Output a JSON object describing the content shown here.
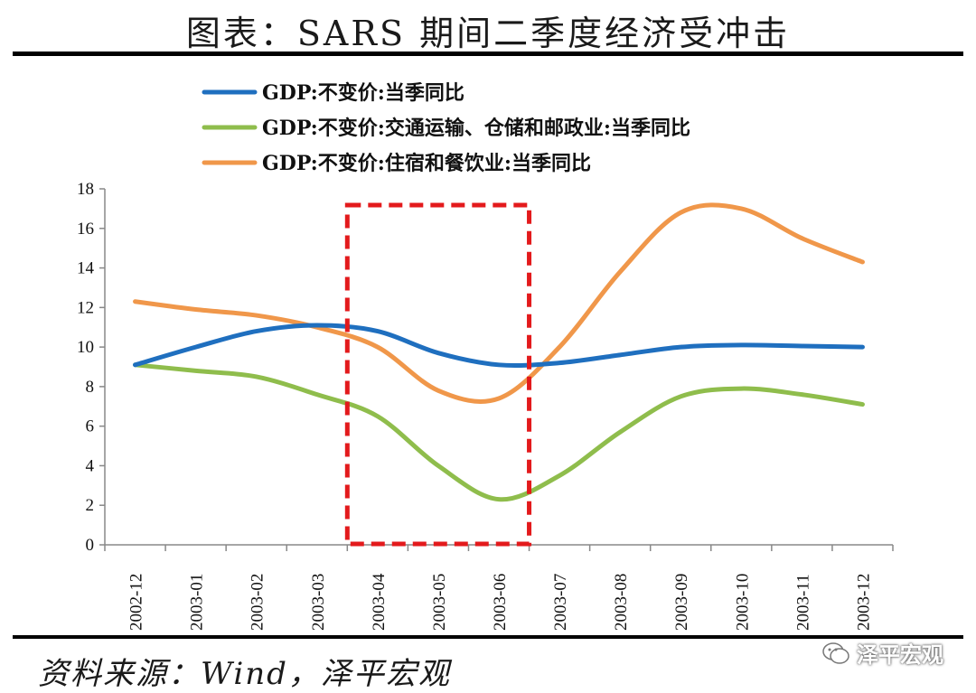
{
  "title": "图表：SARS 期间二季度经济受冲击",
  "source": "资料来源：Wind，泽平宏观",
  "watermark": "泽平宏观",
  "chart_data": {
    "type": "line",
    "categories": [
      "2002-12",
      "2003-01",
      "2003-02",
      "2003-03",
      "2003-04",
      "2003-05",
      "2003-06",
      "2003-07",
      "2003-08",
      "2003-09",
      "2003-10",
      "2003-11",
      "2003-12"
    ],
    "ylim": [
      0,
      18
    ],
    "yticks": [
      0,
      2,
      4,
      6,
      8,
      10,
      12,
      14,
      16,
      18
    ],
    "series": [
      {
        "name": "GDP:不变价:当季同比",
        "color": "#1f6fbf",
        "values": [
          9.1,
          10.0,
          10.8,
          11.1,
          10.8,
          9.7,
          9.1,
          9.2,
          9.6,
          10.0,
          10.1,
          10.05,
          10.0
        ]
      },
      {
        "name": "GDP:不变价:交通运输、仓储和邮政业:当季同比",
        "color": "#8fbd4c",
        "values": [
          9.1,
          8.8,
          8.5,
          7.6,
          6.5,
          4.0,
          2.3,
          3.5,
          5.7,
          7.5,
          7.9,
          7.6,
          7.1
        ]
      },
      {
        "name": "GDP:不变价:住宿和餐饮业:当季同比",
        "color": "#f0974a",
        "values": [
          12.3,
          11.9,
          11.6,
          11.0,
          10.0,
          7.8,
          7.4,
          10.0,
          13.8,
          16.8,
          17.0,
          15.5,
          14.3
        ]
      }
    ],
    "highlight": {
      "from_category": "2003-04",
      "to_category": "2003-06",
      "color": "#e31a1c",
      "style": "dashed"
    },
    "legend_position": "top-left"
  }
}
